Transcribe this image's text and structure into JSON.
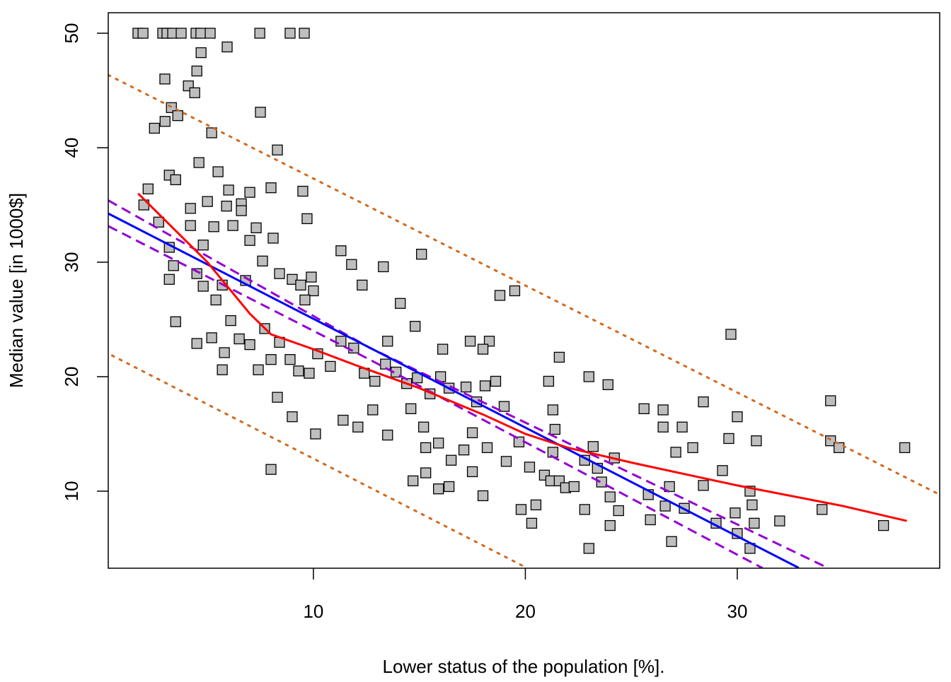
{
  "chart_data": {
    "type": "scatter",
    "x_label": "Lower status of the population [%].",
    "y_label": "Median value [in 1000$]",
    "xlim": [
      0.32,
      39.55
    ],
    "ylim": [
      3.27,
      51.79
    ],
    "xticks": [
      10,
      20,
      30
    ],
    "yticks": [
      10,
      20,
      30,
      40,
      50
    ],
    "series": [
      {
        "type": "scatter",
        "color": "#bebebe",
        "x": [
          1.72,
          1.96,
          2.89,
          3.09,
          3.36,
          3.76,
          4.46,
          4.69,
          5.13,
          7.47,
          8.9,
          9.57,
          2.99,
          4.7,
          5.93,
          4.5,
          3.3,
          2.5,
          3.0,
          4.1,
          4.4,
          3.6,
          5.2,
          7.5,
          8.3,
          4.6,
          5.5,
          3.2,
          3.5,
          2.2,
          6.0,
          7.0,
          8.0,
          9.5,
          9.7,
          5.0,
          5.9,
          6.6,
          6.6,
          4.2,
          2.0,
          2.7,
          4.2,
          5.3,
          6.2,
          7.3,
          8.1,
          7.0,
          4.8,
          3.2,
          3.4,
          3.2,
          4.5,
          5.7,
          4.8,
          5.4,
          6.8,
          7.6,
          8.4,
          9.0,
          9.9,
          9.4,
          10.0,
          9.6,
          11.3,
          11.8,
          12.3,
          13.3,
          15.1,
          14.1,
          14.8,
          13.5,
          3.5,
          4.5,
          5.2,
          5.8,
          6.1,
          6.5,
          7.0,
          7.7,
          8.0,
          8.4,
          8.9,
          9.3,
          9.8,
          10.2,
          10.8,
          11.3,
          11.9,
          12.4,
          12.9,
          13.4,
          13.9,
          14.4,
          14.9,
          15.5,
          16.0,
          16.4,
          17.2,
          17.7,
          18.1,
          18.6,
          19.0,
          7.4,
          5.7,
          8.3,
          9.0,
          8.0,
          10.1,
          11.4,
          12.1,
          12.8,
          13.5,
          14.6,
          15.2,
          15.3,
          15.9,
          16.5,
          17.1,
          17.5,
          18.2,
          19.1,
          16.4,
          17.5,
          18.0,
          14.7,
          15.3,
          15.9,
          19.7,
          20.2,
          19.8,
          20.3,
          20.5,
          20.9,
          21.2,
          21.6,
          21.9,
          22.3,
          21.3,
          21.4,
          21.1,
          21.6,
          21.3,
          19.5,
          18.8,
          18.3,
          18.0,
          16.1,
          17.4,
          22.8,
          23.2,
          23.4,
          23.6,
          24.0,
          24.2,
          24.4,
          23.0,
          23.9,
          22.8,
          23.0,
          24.0,
          25.6,
          26.5,
          26.5,
          27.4,
          27.1,
          27.9,
          28.4,
          28.4,
          25.8,
          25.9,
          26.6,
          26.8,
          26.9,
          27.5,
          29.0,
          29.3,
          29.6,
          29.7,
          29.9,
          30.0,
          30.0,
          30.6,
          30.6,
          30.7,
          30.8,
          30.9,
          32.0,
          34.0,
          34.4,
          34.4,
          34.8,
          36.9,
          37.9
        ],
        "values": [
          50,
          50,
          50,
          50,
          50,
          50,
          50,
          50,
          50,
          50,
          50,
          50,
          46,
          48.3,
          48.8,
          46.7,
          43.5,
          41.7,
          42.3,
          45.4,
          44.8,
          42.8,
          41.3,
          43.1,
          39.8,
          38.7,
          37.9,
          37.6,
          37.2,
          36.4,
          36.3,
          36.1,
          36.5,
          36.2,
          33.8,
          35.3,
          34.9,
          35.1,
          34.5,
          34.7,
          35.0,
          33.5,
          33.2,
          33.1,
          33.2,
          33.0,
          32.1,
          31.9,
          31.5,
          31.3,
          29.7,
          28.5,
          29.0,
          28.0,
          27.9,
          26.7,
          28.4,
          30.1,
          29.0,
          28.5,
          28.7,
          28.0,
          27.5,
          26.7,
          31.0,
          29.8,
          28.0,
          29.6,
          30.7,
          26.4,
          24.4,
          23.1,
          24.8,
          22.9,
          23.4,
          22.1,
          24.9,
          23.3,
          22.8,
          24.2,
          21.5,
          23.0,
          21.5,
          20.5,
          20.3,
          22.0,
          20.9,
          23.1,
          22.5,
          20.3,
          19.6,
          21.1,
          20.4,
          19.4,
          19.9,
          18.5,
          20.0,
          19.0,
          19.1,
          17.8,
          19.2,
          19.6,
          17.4,
          20.6,
          20.6,
          18.2,
          16.5,
          11.9,
          15.0,
          16.2,
          15.6,
          17.1,
          14.9,
          17.2,
          15.6,
          13.8,
          14.2,
          12.7,
          13.6,
          15.1,
          13.8,
          12.6,
          10.4,
          11.7,
          9.6,
          10.9,
          11.6,
          10.2,
          14.3,
          12.1,
          8.4,
          7.2,
          8.8,
          11.4,
          10.9,
          10.9,
          10.3,
          10.4,
          13.4,
          15.4,
          19.6,
          21.7,
          17.1,
          27.5,
          27.1,
          23.1,
          22.4,
          22.4,
          23.1,
          12.7,
          13.9,
          12.0,
          10.8,
          9.5,
          12.9,
          8.3,
          20.0,
          19.3,
          8.4,
          5.0,
          7.0,
          17.2,
          17.1,
          15.6,
          15.6,
          13.4,
          13.8,
          17.8,
          10.5,
          9.7,
          7.5,
          8.7,
          10.4,
          5.6,
          8.5,
          7.2,
          11.8,
          14.6,
          23.7,
          8.1,
          16.5,
          6.3,
          10.0,
          5.0,
          8.8,
          7.2,
          14.4,
          7.4,
          8.4,
          17.9,
          14.4,
          13.8,
          7.0,
          13.8
        ]
      },
      {
        "type": "line",
        "style": "dotted",
        "color": "#d2691e",
        "x": [
          0.32,
          39.55
        ],
        "values": [
          46.35,
          9.7
        ]
      },
      {
        "type": "line",
        "style": "dotted",
        "color": "#d2691e",
        "x": [
          0.5,
          20.1
        ],
        "values": [
          21.85,
          3.27
        ]
      },
      {
        "type": "line",
        "style": "dashed",
        "color": "#9400d3",
        "x": [
          0.32,
          12.65,
          34.3
        ],
        "values": [
          35.4,
          22.53,
          3.27
        ]
      },
      {
        "type": "line",
        "style": "dashed",
        "color": "#9400d3",
        "x": [
          0.32,
          12.65,
          31.2
        ],
        "values": [
          33.15,
          21.5,
          3.27
        ]
      },
      {
        "type": "line",
        "style": "solid",
        "color": "#0000ff",
        "x": [
          0.32,
          32.9
        ],
        "values": [
          34.25,
          3.3
        ]
      },
      {
        "type": "line",
        "style": "solid",
        "color": "#ff0000",
        "x": [
          1.73,
          5,
          7,
          8,
          10,
          12,
          15,
          18,
          20,
          22,
          25,
          30,
          35,
          38
        ],
        "values": [
          36.0,
          30.0,
          25.5,
          23.7,
          22.4,
          21,
          19,
          16.7,
          15.0,
          13.8,
          12.5,
          10.5,
          8.7,
          7.4
        ]
      }
    ]
  }
}
